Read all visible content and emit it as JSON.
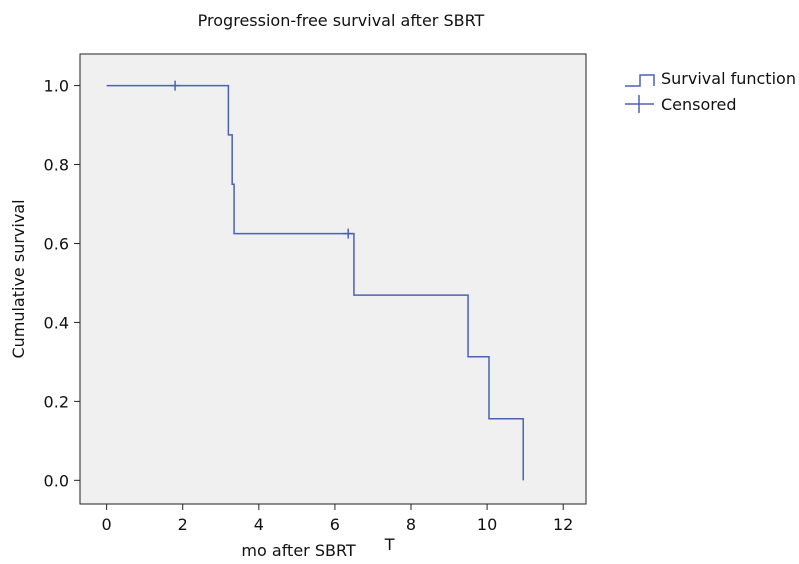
{
  "chart_data": {
    "type": "line",
    "subtype": "kaplan-meier-step",
    "title": "Progression-free survival after SBRT",
    "xlabel": "mo after SBRT",
    "xlabel_suffix": "T",
    "ylabel": "Cumulative survival",
    "xlim": [
      -0.7,
      12.6
    ],
    "ylim": [
      -0.06,
      1.08
    ],
    "xticks": [
      0,
      2,
      4,
      6,
      8,
      10,
      12
    ],
    "yticks": [
      0.0,
      0.2,
      0.4,
      0.6,
      0.8,
      1.0
    ],
    "ytick_labels": [
      "0.0",
      "0.2",
      "0.4",
      "0.6",
      "0.8",
      "1.0"
    ],
    "grid": false,
    "legend_position": "top-right",
    "series": [
      {
        "name": "Survival function",
        "type": "step",
        "color": "#4a62b5",
        "x": [
          0,
          3.2,
          3.3,
          3.35,
          6.5,
          9.5,
          10.05,
          10.95,
          10.95
        ],
        "y": [
          1.0,
          0.875,
          0.75,
          0.625,
          0.469,
          0.313,
          0.156,
          0.156,
          0.0
        ]
      },
      {
        "name": "Censored",
        "type": "marker",
        "color": "#4a62b5",
        "x": [
          1.8,
          6.35
        ],
        "y": [
          1.0,
          0.625
        ]
      }
    ],
    "plot_background": "#f0f0f0"
  }
}
